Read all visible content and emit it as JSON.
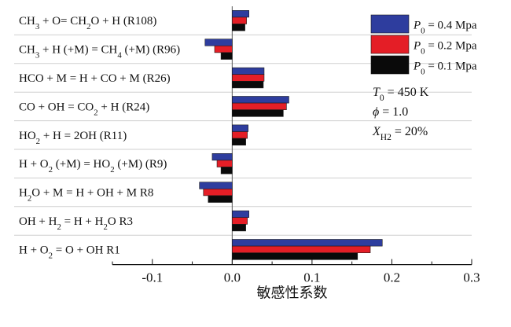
{
  "chart_data": {
    "type": "bar",
    "orientation": "horizontal",
    "title": "",
    "xlabel": "敏感性系数",
    "ylabel": "",
    "xlim": [
      -0.15,
      0.3
    ],
    "xticks": [
      {
        "value": -0.1,
        "label": "-0.1"
      },
      {
        "value": 0.0,
        "label": "0.0"
      },
      {
        "value": 0.1,
        "label": "0.1"
      },
      {
        "value": 0.2,
        "label": "0.2"
      },
      {
        "value": 0.3,
        "label": "0.3"
      }
    ],
    "grid": "horizontal separators between reactions",
    "legend_position": "top-right",
    "categories": [
      [
        {
          "t": "CH"
        },
        {
          "t": "3",
          "sub": true
        },
        {
          "t": " + O= CH"
        },
        {
          "t": "2",
          "sub": true
        },
        {
          "t": "O + H  (R108)"
        }
      ],
      [
        {
          "t": "CH"
        },
        {
          "t": "3",
          "sub": true
        },
        {
          "t": " + H (+M) = CH"
        },
        {
          "t": "4",
          "sub": true
        },
        {
          "t": " (+M)  (R96)"
        }
      ],
      [
        {
          "t": "HCO + M = H + CO + M  (R26)"
        }
      ],
      [
        {
          "t": "CO + OH = CO"
        },
        {
          "t": "2",
          "sub": true
        },
        {
          "t": " + H  (R24)"
        }
      ],
      [
        {
          "t": "HO"
        },
        {
          "t": "2",
          "sub": true
        },
        {
          "t": " + H = 2OH  (R11)"
        }
      ],
      [
        {
          "t": "H + O"
        },
        {
          "t": "2",
          "sub": true
        },
        {
          "t": " (+M) = HO"
        },
        {
          "t": "2",
          "sub": true
        },
        {
          "t": " (+M)  (R9)"
        }
      ],
      [
        {
          "t": "H"
        },
        {
          "t": "2",
          "sub": true
        },
        {
          "t": "O + M = H + OH + M  R8"
        }
      ],
      [
        {
          "t": "OH + H"
        },
        {
          "t": "2",
          "sub": true
        },
        {
          "t": " = H + H"
        },
        {
          "t": "2",
          "sub": true
        },
        {
          "t": "O  R3"
        }
      ],
      [
        {
          "t": "H + O"
        },
        {
          "t": "2",
          "sub": true
        },
        {
          "t": " = O + OH  R1"
        }
      ]
    ],
    "series": [
      {
        "name": [
          {
            "t": "P",
            "i": true
          },
          {
            "t": "0",
            "sub": true
          },
          {
            "t": " = 0.4 Mpa"
          }
        ],
        "color": "#2e3d9e",
        "values": [
          0.021,
          -0.034,
          0.04,
          0.071,
          0.02,
          -0.025,
          -0.041,
          0.021,
          0.188
        ]
      },
      {
        "name": [
          {
            "t": "P",
            "i": true
          },
          {
            "t": "0",
            "sub": true
          },
          {
            "t": " = 0.2 Mpa"
          }
        ],
        "color": "#e41e26",
        "values": [
          0.018,
          -0.022,
          0.04,
          0.068,
          0.019,
          -0.019,
          -0.036,
          0.019,
          0.173
        ]
      },
      {
        "name": [
          {
            "t": "P",
            "i": true
          },
          {
            "t": "0",
            "sub": true
          },
          {
            "t": " = 0.1 Mpa"
          }
        ],
        "color": "#0a0a0a",
        "values": [
          0.016,
          -0.014,
          0.039,
          0.064,
          0.017,
          -0.014,
          -0.03,
          0.017,
          0.157
        ]
      }
    ],
    "annotations": [
      [
        {
          "t": "T",
          "i": true
        },
        {
          "t": "0",
          "sub": true
        },
        {
          "t": " = 450 K"
        }
      ],
      [
        {
          "t": "ϕ",
          "i": true
        },
        {
          "t": " = 1.0"
        }
      ],
      [
        {
          "t": "X",
          "i": true
        },
        {
          "t": "H2",
          "sub": true
        },
        {
          "t": " = 20%"
        }
      ]
    ]
  }
}
